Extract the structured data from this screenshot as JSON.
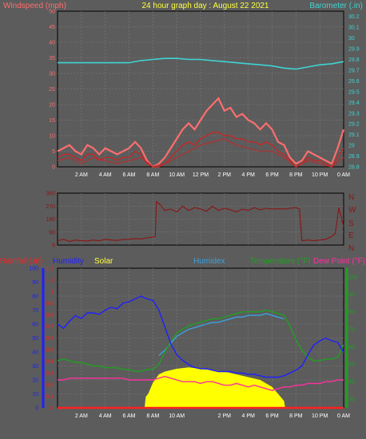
{
  "colors": {
    "background": "#5c5c5c",
    "grid": "#7a7a7a",
    "windspeed": "#ff6e6e",
    "wind_avg": "#d32020",
    "wind_dark": "#a03a3a",
    "barometer": "#3fd3d3",
    "title": "#ffff40",
    "direction": "#8b1414",
    "rainfall": "#ff2020",
    "humidity": "#2020ff",
    "solar": "#ffff00",
    "humidex": "#3aa0e0",
    "temperature": "#20a020",
    "dewpoint": "#ff30a0",
    "axis_text": "#ffffff"
  },
  "header": {
    "left": "Windspeed (mph)",
    "title": "24 hour graph day : August 22 2021",
    "right": "Barometer (.in)"
  },
  "legend": {
    "rainfall": "Rainfall (.in)",
    "humidity": "Humidity",
    "solar": "Solar",
    "humidex": "Humidex",
    "temperature": "Temperature (°F)",
    "dewpoint": "Dew Point (°F)"
  },
  "compass": [
    "N",
    "W",
    "S",
    "E",
    "N"
  ],
  "chart_data": [
    {
      "type": "line",
      "panel": "wind-barometer",
      "x_ticks": [
        "2 AM",
        "4 AM",
        "6 AM",
        "8 AM",
        "10 AM",
        "12 PM",
        "2 PM",
        "4 PM",
        "6 PM",
        "8 PM",
        "10 PM",
        "0 AM"
      ],
      "y_left_ticks": [
        "0",
        "5",
        "10",
        "15",
        "20",
        "25",
        "30",
        "35",
        "40",
        "45",
        "50"
      ],
      "y_right_ticks": [
        "28.8",
        "28.9",
        "29",
        "29.1",
        "29.2",
        "29.3",
        "29.4",
        "29.5",
        "29.6",
        "29.7",
        "29.8",
        "29.9",
        "30",
        "30.1",
        "30.2"
      ],
      "ylim_left": [
        0,
        50
      ],
      "ylim_right": [
        28.8,
        30.25
      ],
      "xlim": [
        0,
        24
      ],
      "series": [
        {
          "key": "barometer",
          "x": [
            0,
            2,
            4,
            6,
            7,
            8,
            9,
            10,
            11,
            12,
            13,
            14,
            15,
            16,
            17,
            18,
            19,
            20,
            21,
            22,
            23,
            24
          ],
          "y": [
            29.77,
            29.77,
            29.77,
            29.77,
            29.79,
            29.8,
            29.81,
            29.81,
            29.8,
            29.8,
            29.79,
            29.78,
            29.77,
            29.76,
            29.75,
            29.74,
            29.72,
            29.71,
            29.73,
            29.75,
            29.76,
            29.78
          ]
        },
        {
          "key": "windspeed",
          "x": [
            0,
            0.5,
            1,
            1.5,
            2,
            2.5,
            3,
            3.5,
            4,
            4.5,
            5,
            5.5,
            6,
            6.5,
            7,
            7.5,
            8,
            8.5,
            9,
            9.5,
            10,
            10.5,
            11,
            11.5,
            12,
            12.5,
            13,
            13.5,
            14,
            14.5,
            15,
            15.5,
            16,
            16.5,
            17,
            17.5,
            18,
            18.5,
            19,
            19.5,
            20,
            20.5,
            21,
            21.5,
            22,
            22.5,
            23,
            23.5,
            24
          ],
          "y": [
            5,
            6,
            7,
            5,
            4,
            7,
            6,
            4,
            6,
            5,
            4,
            5,
            6,
            8,
            6,
            2,
            0,
            1,
            3,
            6,
            9,
            12,
            14,
            12,
            15,
            18,
            20,
            22,
            18,
            19,
            16,
            17,
            15,
            14,
            12,
            14,
            12,
            8,
            7,
            3,
            1,
            2,
            5,
            4,
            3,
            2,
            1,
            6,
            12
          ]
        },
        {
          "key": "wind_avg",
          "x": [
            0,
            0.5,
            1,
            1.5,
            2,
            2.5,
            3,
            3.5,
            4,
            4.5,
            5,
            5.5,
            6,
            6.5,
            7,
            7.5,
            8,
            8.5,
            9,
            9.5,
            10,
            10.5,
            11,
            11.5,
            12,
            12.5,
            13,
            13.5,
            14,
            14.5,
            15,
            15.5,
            16,
            16.5,
            17,
            17.5,
            18,
            18.5,
            19,
            19.5,
            20,
            20.5,
            21,
            21.5,
            22,
            22.5,
            23,
            23.5,
            24
          ],
          "y": [
            3,
            4,
            4,
            3,
            2,
            4,
            4,
            2,
            3,
            3,
            2,
            3,
            3,
            5,
            4,
            1,
            0,
            0,
            1,
            3,
            5,
            7,
            8,
            7,
            9,
            10,
            11,
            11,
            10,
            10,
            9,
            9,
            8,
            8,
            7,
            8,
            7,
            5,
            4,
            2,
            0,
            1,
            3,
            2,
            2,
            1,
            0,
            3,
            6
          ]
        },
        {
          "key": "wind_dark",
          "x": [
            0,
            1,
            2,
            3,
            4,
            5,
            6,
            7,
            8,
            9,
            10,
            11,
            12,
            13,
            14,
            15,
            16,
            17,
            18,
            19,
            20,
            21,
            22,
            23,
            24
          ],
          "y": [
            2,
            3,
            1,
            3,
            2,
            1,
            2,
            3,
            0,
            1,
            3,
            5,
            7,
            8,
            9,
            7,
            6,
            5,
            5,
            3,
            0,
            2,
            1,
            0,
            3
          ]
        }
      ]
    },
    {
      "type": "line",
      "panel": "wind-direction",
      "y_ticks": [
        "0",
        "90",
        "180",
        "270",
        "360"
      ],
      "ylim": [
        0,
        360
      ],
      "xlim": [
        0,
        24
      ],
      "series": [
        {
          "key": "direction",
          "x": [
            0,
            0.5,
            1,
            1.5,
            2,
            2.5,
            3,
            3.5,
            4,
            4.5,
            5,
            5.5,
            6,
            6.5,
            7,
            7.5,
            8,
            8.2,
            8.3,
            8.6,
            9,
            9.5,
            10,
            10.5,
            11,
            11.5,
            12,
            12.5,
            13,
            13.5,
            14,
            14.5,
            15,
            15.5,
            16,
            16.5,
            17,
            17.5,
            18,
            18.5,
            19,
            19.5,
            20,
            20.3,
            20.5,
            21,
            21.5,
            22,
            22.5,
            23,
            23.3,
            23.6,
            24
          ],
          "y": [
            30,
            40,
            25,
            35,
            30,
            28,
            35,
            30,
            40,
            35,
            32,
            38,
            40,
            45,
            42,
            50,
            55,
            60,
            300,
            280,
            240,
            250,
            230,
            270,
            240,
            260,
            250,
            235,
            270,
            240,
            255,
            245,
            230,
            250,
            240,
            260,
            245,
            255,
            250,
            252,
            250,
            255,
            260,
            250,
            30,
            35,
            30,
            35,
            40,
            60,
            80,
            260,
            130
          ]
        }
      ]
    },
    {
      "type": "line",
      "panel": "temperature-humidity",
      "x_ticks": [
        "2 AM",
        "4 AM",
        "6 AM",
        "8 AM",
        "10 AM",
        "2 PM",
        "4 PM",
        "6 PM",
        "8 PM",
        "10 PM",
        "0 AM"
      ],
      "y_left_ticks": [
        "0",
        "10",
        "20",
        "30",
        "40",
        "50",
        "60",
        "70",
        "80",
        "90",
        "100"
      ],
      "y_rain_ticks": [
        "0",
        "0.1",
        "0.2",
        "0.3",
        "0.4",
        "0.5",
        "0.6",
        "0.7",
        "0.8",
        "0.9",
        "1",
        "1.1",
        "1.2"
      ],
      "y_right_ticks": [
        "30",
        "40",
        "50",
        "60",
        "70",
        "80",
        "90",
        "100"
      ],
      "ylim_left": [
        0,
        100
      ],
      "ylim_rain": [
        0,
        1.2
      ],
      "ylim_right": [
        25,
        105
      ],
      "xlim": [
        0,
        24
      ],
      "series": [
        {
          "key": "humidity",
          "x": [
            0,
            0.5,
            1,
            1.5,
            2,
            2.5,
            3,
            3.5,
            4,
            4.5,
            5,
            5.5,
            6,
            6.5,
            7,
            7.5,
            8,
            8.5,
            9,
            9.5,
            10,
            10.5,
            11,
            11.5,
            12,
            12.5,
            13,
            13.5,
            14,
            14.5,
            15,
            15.5,
            16,
            16.5,
            17,
            17.5,
            18,
            18.5,
            19,
            19.5,
            20,
            20.5,
            21,
            21.5,
            22,
            22.5,
            23,
            23.5,
            24
          ],
          "y": [
            60,
            57,
            62,
            66,
            64,
            68,
            68,
            67,
            70,
            72,
            71,
            75,
            76,
            78,
            80,
            78,
            77,
            70,
            58,
            46,
            38,
            34,
            31,
            29,
            28,
            28,
            27,
            26,
            26,
            26,
            25,
            25,
            24,
            24,
            23,
            22,
            22,
            22,
            23,
            25,
            27,
            30,
            38,
            45,
            48,
            50,
            48,
            47,
            40
          ]
        },
        {
          "key": "temperature",
          "x": [
            0,
            0.5,
            1,
            1.5,
            2,
            2.5,
            3,
            3.5,
            4,
            4.5,
            5,
            5.5,
            6,
            6.5,
            7,
            7.5,
            8,
            8.5,
            9,
            9.5,
            10,
            10.5,
            11,
            11.5,
            12,
            12.5,
            13,
            13.5,
            14,
            14.5,
            15,
            15.5,
            16,
            16.5,
            17,
            17.5,
            18,
            18.5,
            19,
            19.5,
            20,
            20.5,
            21,
            21.5,
            22,
            22.5,
            23,
            23.5,
            24
          ],
          "y": [
            52,
            53,
            52,
            51,
            51,
            50,
            49,
            49,
            48,
            48,
            48,
            47,
            47,
            46,
            46,
            47,
            47,
            50,
            57,
            63,
            68,
            70,
            72,
            73,
            74,
            75,
            76,
            76,
            77,
            78,
            79,
            80,
            80,
            80,
            80,
            81,
            80,
            79,
            78,
            72,
            64,
            58,
            54,
            52,
            52,
            53,
            53,
            54,
            61
          ]
        },
        {
          "key": "humidex",
          "x": [
            8.5,
            9,
            9.5,
            10,
            10.5,
            11,
            11.5,
            12,
            12.5,
            13,
            13.5,
            14,
            14.5,
            15,
            15.5,
            16,
            16.5,
            17,
            17.5,
            18,
            18.5,
            19
          ],
          "y": [
            55,
            58,
            62,
            66,
            68,
            70,
            71,
            72,
            73,
            74,
            74,
            75,
            76,
            77,
            77,
            78,
            78,
            78,
            79,
            78,
            77,
            76
          ]
        },
        {
          "key": "dewpoint",
          "x": [
            0,
            0.5,
            1,
            1.5,
            2,
            2.5,
            3,
            3.5,
            4,
            4.5,
            5,
            5.5,
            6,
            6.5,
            7,
            7.5,
            8,
            8.5,
            9,
            9.5,
            10,
            10.5,
            11,
            11.5,
            12,
            12.5,
            13,
            13.5,
            14,
            14.5,
            15,
            15.5,
            16,
            16.5,
            17,
            17.5,
            18,
            18.5,
            19,
            19.5,
            20,
            20.5,
            21,
            21.5,
            22,
            22.5,
            23,
            23.5,
            24
          ],
          "y": [
            41,
            41,
            42,
            42,
            42,
            42,
            42,
            42,
            42,
            42,
            42,
            42,
            41,
            41,
            41,
            41,
            41,
            42,
            43,
            42,
            41,
            40,
            40,
            40,
            39,
            40,
            40,
            39,
            38,
            38,
            39,
            38,
            37,
            38,
            37,
            36,
            35,
            36,
            37,
            37,
            38,
            38,
            39,
            39,
            39,
            40,
            40,
            41,
            41
          ]
        },
        {
          "key": "solar",
          "x": [
            0,
            7.3,
            7.4,
            7.6,
            8,
            8.5,
            9,
            10,
            11,
            12,
            13,
            14,
            15,
            16,
            17,
            18,
            18.5,
            19,
            19.1,
            24
          ],
          "y": [
            0,
            0,
            8,
            10,
            18,
            24,
            26,
            28,
            29,
            28,
            27,
            26,
            24,
            22,
            20,
            15,
            10,
            5,
            0,
            0
          ]
        },
        {
          "key": "rainfall",
          "x": [
            0,
            24
          ],
          "y": [
            0,
            0
          ]
        }
      ]
    }
  ]
}
